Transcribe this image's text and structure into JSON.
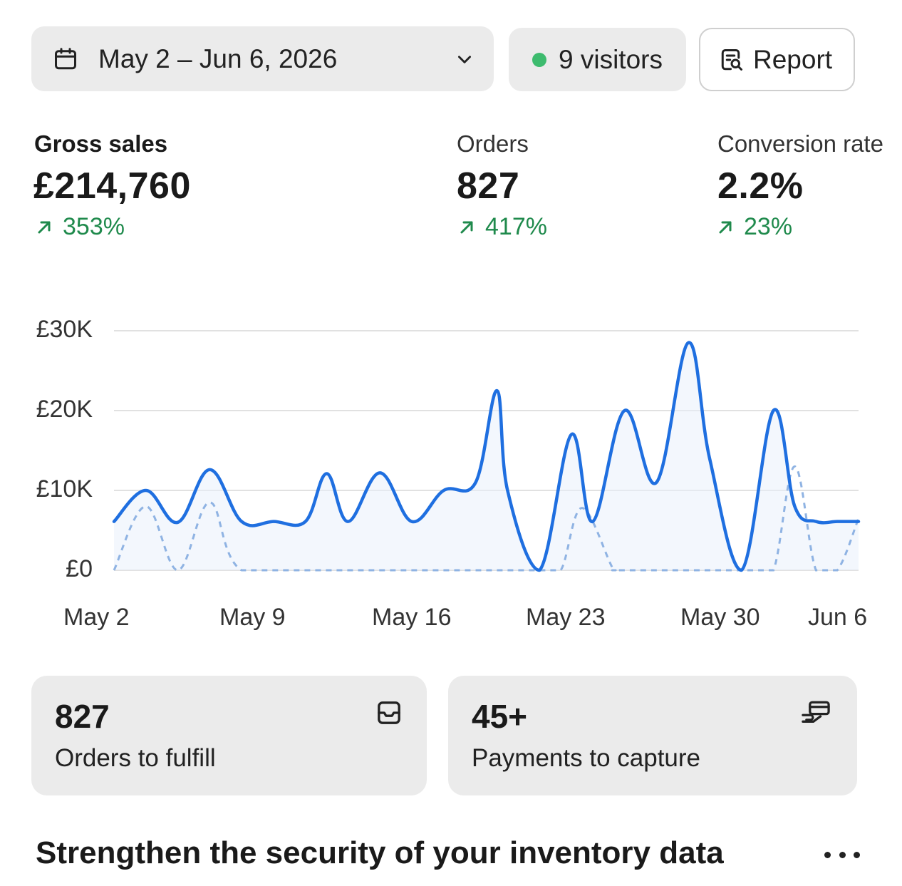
{
  "header": {
    "date_range": "May 2 – Jun 6, 2026",
    "visitors": "9 visitors",
    "report_label": "Report",
    "visitors_dot_color": "#3dbb6e"
  },
  "metrics": [
    {
      "label": "Gross sales",
      "value": "£214,760",
      "change": "353%"
    },
    {
      "label": "Orders",
      "value": "827",
      "change": "417%"
    },
    {
      "label": "Conversion rate",
      "value": "2.2%",
      "change": "23%"
    }
  ],
  "chart_data": {
    "type": "line",
    "ylim": [
      0,
      30000
    ],
    "y_ticks": [
      "£0",
      "£10K",
      "£20K",
      "£30K"
    ],
    "y_tick_values": [
      0,
      10000,
      20000,
      30000
    ],
    "x_tick_labels": [
      "May 2",
      "May 9",
      "May 16",
      "May 23",
      "May 30",
      "Jun 6"
    ],
    "x_day_range": [
      0,
      35
    ],
    "grid": true,
    "series": [
      {
        "style": "solid",
        "color": "#1f6fe0",
        "x": [
          0,
          1.5,
          3,
          4.5,
          6,
          7.5,
          9,
          10,
          11,
          12.5,
          14,
          15.5,
          17,
          18,
          18.5,
          20,
          21.5,
          22.5,
          24,
          25.5,
          27,
          28,
          29.5,
          31,
          32,
          33,
          34,
          35
        ],
        "y": [
          6100,
          10000,
          6000,
          12600,
          6100,
          6100,
          6100,
          12100,
          6100,
          12200,
          6100,
          10000,
          11000,
          22500,
          10000,
          0,
          17000,
          6100,
          20000,
          11000,
          28500,
          14000,
          0,
          20000,
          8000,
          6100,
          6100,
          6100
        ]
      },
      {
        "style": "dashed",
        "color": "#8fb3e3",
        "x": [
          0,
          1.5,
          3,
          4.5,
          6,
          10,
          14,
          18,
          19,
          20,
          21,
          22,
          23.5,
          24,
          30,
          31,
          32,
          33,
          34,
          35
        ],
        "y": [
          0,
          8000,
          0,
          8500,
          0,
          0,
          0,
          0,
          0,
          0,
          0,
          7800,
          0,
          0,
          0,
          0,
          13000,
          0,
          0,
          6500
        ]
      }
    ]
  },
  "cards": [
    {
      "value": "827",
      "label": "Orders to fulfill",
      "icon": "inbox-icon"
    },
    {
      "value": "45+",
      "label": "Payments to capture",
      "icon": "payment-hand-icon"
    }
  ],
  "security": {
    "title": "Strengthen the security of your inventory data"
  }
}
